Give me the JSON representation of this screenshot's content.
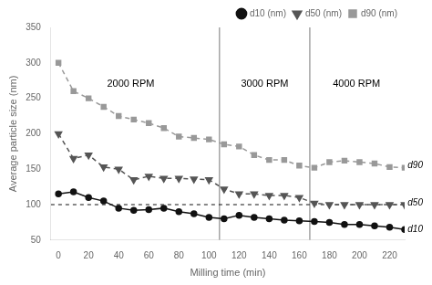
{
  "chart_data": {
    "type": "line",
    "x": [
      0,
      10,
      20,
      30,
      40,
      50,
      60,
      70,
      80,
      90,
      100,
      110,
      120,
      130,
      140,
      150,
      160,
      170,
      180,
      190,
      200,
      210,
      220,
      230
    ],
    "series": [
      {
        "name": "d10 (nm)",
        "color": "#111111",
        "marker": "circle",
        "line_style": "solid",
        "values": [
          115,
          118,
          110,
          105,
          95,
          92,
          93,
          95,
          90,
          87,
          82,
          80,
          85,
          82,
          80,
          78,
          77,
          76,
          75,
          72,
          72,
          70,
          68,
          65
        ]
      },
      {
        "name": "d50 (nm)",
        "color": "#555555",
        "marker": "triangle_down",
        "line_style": "dashed",
        "values": [
          200,
          165,
          170,
          153,
          150,
          135,
          140,
          137,
          137,
          136,
          135,
          122,
          115,
          115,
          113,
          113,
          110,
          102,
          100,
          100,
          100,
          100,
          100,
          100
        ]
      },
      {
        "name": "d90 (nm)",
        "color": "#999999",
        "marker": "square",
        "line_style": "dashed",
        "values": [
          300,
          260,
          250,
          238,
          225,
          220,
          215,
          208,
          196,
          194,
          192,
          185,
          182,
          170,
          163,
          163,
          155,
          152,
          160,
          162,
          160,
          158,
          153,
          152
        ]
      }
    ],
    "xlabel": "Milling time (min)",
    "ylabel": "Average particle size (nm)",
    "xlim": [
      -5,
      230
    ],
    "ylim": [
      50,
      350
    ],
    "xticks": [
      0,
      20,
      40,
      60,
      80,
      100,
      120,
      140,
      160,
      180,
      200,
      220
    ],
    "yticks": [
      50,
      100,
      150,
      200,
      250,
      300,
      350
    ],
    "reference_lines": [
      {
        "axis": "x",
        "value": 107,
        "color": "#777777",
        "line_style": "solid"
      },
      {
        "axis": "x",
        "value": 167,
        "color": "#777777",
        "line_style": "solid"
      },
      {
        "axis": "y",
        "value": 100,
        "color": "#111111",
        "line_style": "dashed"
      }
    ],
    "annotations": [
      {
        "text": "2000 RPM",
        "x": 48,
        "y": 270
      },
      {
        "text": "3000 RPM",
        "x": 137,
        "y": 270
      },
      {
        "text": "4000 RPM",
        "x": 198,
        "y": 270
      },
      {
        "text": "d90",
        "x": 232,
        "y": 155
      },
      {
        "text": "d50",
        "x": 232,
        "y": 102
      },
      {
        "text": "d10",
        "x": 232,
        "y": 65
      }
    ],
    "legend": "upper right",
    "grid": false
  }
}
